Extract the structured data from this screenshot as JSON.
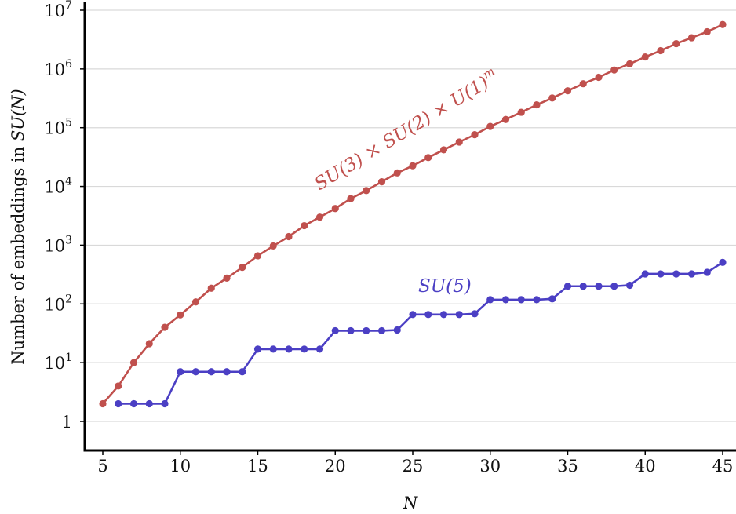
{
  "chart_data": {
    "type": "line",
    "title": "",
    "xlabel": "N",
    "ylabel_prefix": "Number of embeddings in",
    "ylabel_math": "SU(N)",
    "xlim": [
      5,
      45
    ],
    "ylim": [
      1,
      10000000
    ],
    "y_scale": "log",
    "grid": "horizontal",
    "x_ticks": [
      5,
      10,
      15,
      20,
      25,
      30,
      35,
      40,
      45
    ],
    "y_ticks": [
      {
        "value": 1,
        "base": "1",
        "exp": ""
      },
      {
        "value": 10,
        "base": "10",
        "exp": "1"
      },
      {
        "value": 100,
        "base": "10",
        "exp": "2"
      },
      {
        "value": 1000,
        "base": "10",
        "exp": "3"
      },
      {
        "value": 10000,
        "base": "10",
        "exp": "4"
      },
      {
        "value": 100000,
        "base": "10",
        "exp": "5"
      },
      {
        "value": 1000000,
        "base": "10",
        "exp": "6"
      },
      {
        "value": 10000000,
        "base": "10",
        "exp": "7"
      }
    ],
    "series": [
      {
        "label": "SU(3) × SU(2) × U(1)",
        "label_sup": "m",
        "color": "#c0504d",
        "x": [
          5,
          6,
          7,
          8,
          9,
          10,
          11,
          12,
          13,
          14,
          15,
          16,
          17,
          18,
          19,
          20,
          21,
          22,
          23,
          24,
          25,
          26,
          27,
          28,
          29,
          30,
          31,
          32,
          33,
          34,
          35,
          36,
          37,
          38,
          39,
          40,
          41,
          42,
          43,
          44,
          45
        ],
        "y": [
          2,
          4,
          10,
          21,
          40,
          65,
          108,
          185,
          275,
          420,
          660,
          970,
          1400,
          2150,
          3000,
          4200,
          6200,
          8500,
          12000,
          17000,
          22500,
          31000,
          42000,
          57000,
          76000,
          105000,
          138000,
          183000,
          245000,
          320000,
          425000,
          560000,
          720000,
          960000,
          1220000,
          1600000,
          2050000,
          2700000,
          3400000,
          4300000,
          5700000
        ]
      },
      {
        "label": "SU(5)",
        "color": "#4b3fc4",
        "x": [
          6,
          7,
          8,
          9,
          10,
          11,
          12,
          13,
          14,
          15,
          16,
          17,
          18,
          19,
          20,
          21,
          22,
          23,
          24,
          25,
          26,
          27,
          28,
          29,
          30,
          31,
          32,
          33,
          34,
          35,
          36,
          37,
          38,
          39,
          40,
          41,
          42,
          43,
          44,
          45
        ],
        "y": [
          2,
          2,
          2,
          2,
          7,
          7,
          7,
          7,
          7,
          17,
          17,
          17,
          17,
          17,
          35,
          35,
          35,
          35,
          36,
          66,
          66,
          66,
          66,
          68,
          118,
          118,
          118,
          118,
          122,
          200,
          200,
          200,
          200,
          208,
          325,
          325,
          325,
          325,
          345,
          510
        ]
      }
    ]
  }
}
